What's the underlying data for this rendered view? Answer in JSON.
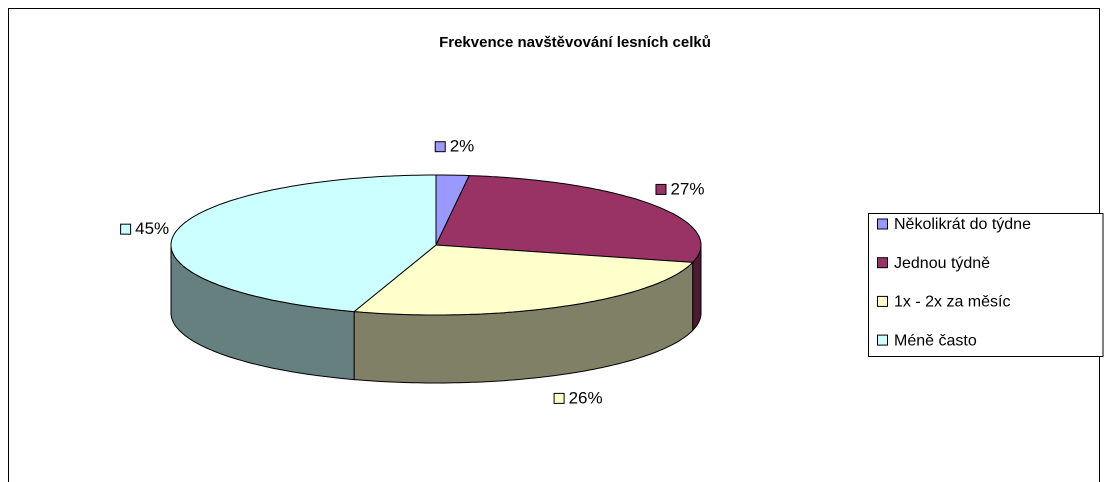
{
  "chart_data": {
    "type": "pie",
    "title": "Frekvence navštěvování lesních celků",
    "categories": [
      "Několikrát do týdne",
      "Jednou týdně",
      "1x - 2x za měsíc",
      "Méně často"
    ],
    "values": [
      2,
      27,
      26,
      45
    ],
    "value_labels": [
      "2%",
      "27%",
      "26%",
      "45%"
    ],
    "colors": [
      "#9999ff",
      "#993366",
      "#ffffcc",
      "#ccffff"
    ],
    "legend": "right"
  }
}
